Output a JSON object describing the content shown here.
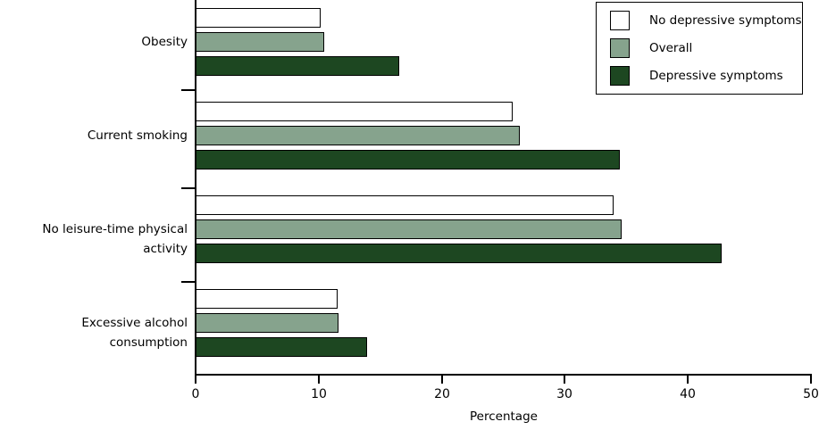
{
  "chart_data": {
    "type": "bar",
    "orientation": "horizontal",
    "title": "",
    "xlabel": "Percentage",
    "xlim": [
      0,
      50
    ],
    "xticks": [
      0,
      10,
      20,
      30,
      40,
      50
    ],
    "grid": false,
    "legend_position": "top-right",
    "bar_border_color": "#000000",
    "categories": [
      "Obesity",
      "Current smoking",
      "No leisure-time physical activity",
      "Excessive alcohol consumption"
    ],
    "series": [
      {
        "name": "No depressive symptoms",
        "color": "#FFFFFF",
        "values": [
          10.0,
          25.6,
          33.8,
          11.4
        ]
      },
      {
        "name": "Overall",
        "color": "#86A38D",
        "values": [
          10.3,
          26.2,
          34.5,
          11.5
        ]
      },
      {
        "name": "Depressive symptoms",
        "color": "#1D4721",
        "values": [
          16.4,
          34.3,
          42.6,
          13.8
        ]
      }
    ]
  }
}
